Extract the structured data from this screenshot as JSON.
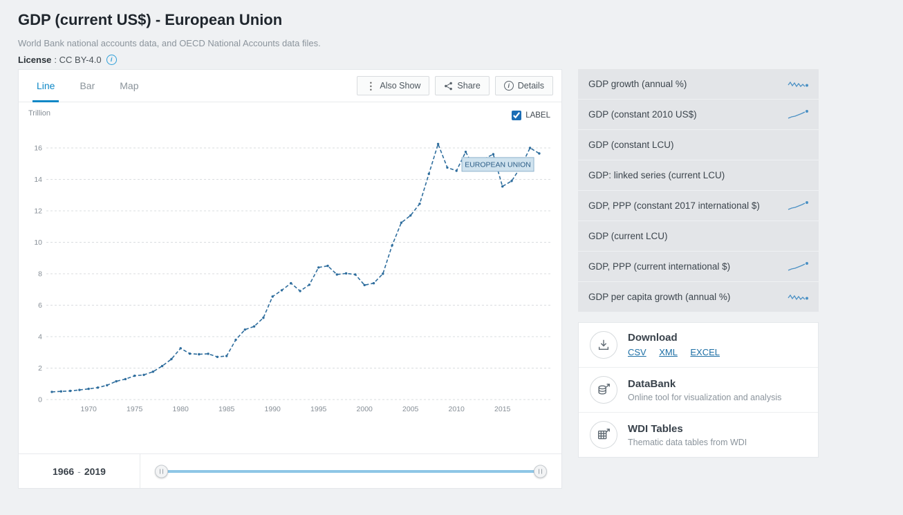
{
  "header": {
    "title": "GDP (current US$) - European Union",
    "subtitle": "World Bank national accounts data, and OECD National Accounts data files.",
    "license_label": "License",
    "license_value": ": CC BY-4.0"
  },
  "chart_panel": {
    "tabs": [
      {
        "label": "Line",
        "active": true
      },
      {
        "label": "Bar",
        "active": false
      },
      {
        "label": "Map",
        "active": false
      }
    ],
    "buttons": [
      {
        "label": "Also Show",
        "icon": "kebab-icon"
      },
      {
        "label": "Share",
        "icon": "share-icon"
      },
      {
        "label": "Details",
        "icon": "info-icon"
      }
    ],
    "unit_label": "Trillion",
    "label_toggle": "LABEL",
    "label_checked": true
  },
  "chart_data": {
    "type": "line",
    "title": "GDP (current US$) - European Union",
    "ylabel": "Trillion",
    "xlabel": "",
    "grid": true,
    "line_style": "dashed",
    "color": "#2e6d9d",
    "xlim": [
      1966,
      2019
    ],
    "ylim": [
      0,
      16
    ],
    "yticks": [
      0,
      2,
      4,
      6,
      8,
      10,
      12,
      14,
      16
    ],
    "xticks": [
      1970,
      1975,
      1980,
      1985,
      1990,
      1995,
      2000,
      2005,
      2010,
      2015
    ],
    "annotation": "EUROPEAN UNION",
    "label_anchor": {
      "x": 2014.5,
      "y": 14.95
    },
    "x": [
      1966,
      1967,
      1968,
      1969,
      1970,
      1971,
      1972,
      1973,
      1974,
      1975,
      1976,
      1977,
      1978,
      1979,
      1980,
      1981,
      1982,
      1983,
      1984,
      1985,
      1986,
      1987,
      1988,
      1989,
      1990,
      1991,
      1992,
      1993,
      1994,
      1995,
      1996,
      1997,
      1998,
      1999,
      2000,
      2001,
      2002,
      2003,
      2004,
      2005,
      2006,
      2007,
      2008,
      2009,
      2010,
      2011,
      2012,
      2013,
      2014,
      2015,
      2016,
      2017,
      2018,
      2019
    ],
    "series": [
      {
        "name": "European Union",
        "values": [
          0.49,
          0.52,
          0.55,
          0.61,
          0.68,
          0.76,
          0.91,
          1.16,
          1.3,
          1.51,
          1.57,
          1.77,
          2.13,
          2.57,
          3.26,
          2.92,
          2.88,
          2.91,
          2.71,
          2.77,
          3.8,
          4.45,
          4.65,
          5.2,
          6.55,
          6.95,
          7.4,
          6.9,
          7.3,
          8.4,
          8.5,
          7.95,
          8.02,
          7.95,
          7.28,
          7.4,
          8.0,
          9.8,
          11.25,
          11.7,
          12.45,
          14.35,
          16.25,
          14.75,
          14.55,
          15.75,
          14.65,
          15.3,
          15.6,
          13.55,
          13.9,
          14.8,
          16.0,
          15.65
        ]
      }
    ]
  },
  "range": {
    "start": "1966",
    "separator": "-",
    "end": "2019"
  },
  "related_indicators": {
    "items": [
      {
        "label": "GDP growth (annual %)",
        "sparkline": "wavy"
      },
      {
        "label": "GDP (constant 2010 US$)",
        "sparkline": "rising"
      },
      {
        "label": "GDP (constant LCU)",
        "sparkline": ""
      },
      {
        "label": "GDP: linked series (current LCU)",
        "sparkline": ""
      },
      {
        "label": "GDP, PPP (constant 2017 international $)",
        "sparkline": "rising"
      },
      {
        "label": "GDP (current LCU)",
        "sparkline": ""
      },
      {
        "label": "GDP, PPP (current international $)",
        "sparkline": "rising"
      },
      {
        "label": "GDP per capita growth (annual %)",
        "sparkline": "wavy"
      }
    ]
  },
  "tools": {
    "download": {
      "title": "Download",
      "links": [
        "CSV",
        "XML",
        "EXCEL"
      ]
    },
    "databank": {
      "title": "DataBank",
      "desc": "Online tool for visualization and analysis"
    },
    "wdi": {
      "title": "WDI Tables",
      "desc": "Thematic data tables from WDI"
    }
  },
  "colors": {
    "accent_blue": "#0d87c6",
    "line_blue": "#2e6d9d",
    "slider_blue": "#8ec6e6",
    "row_gray": "#e3e5e8",
    "label_box_fill": "#cfe2ee",
    "label_box_border": "#8fb3cd",
    "link_blue": "#1d6fa5"
  }
}
